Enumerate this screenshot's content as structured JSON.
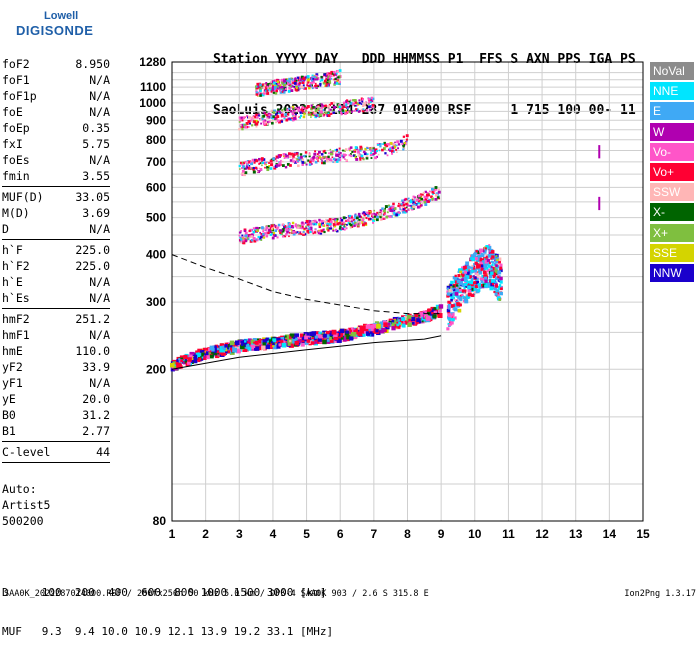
{
  "logo": {
    "line1": "Lowell",
    "line2": "DIGISONDE"
  },
  "header": {
    "line1": "Station YYYY DAY   DDD HHMMSS P1  FFS S AXN PPS IGA PS",
    "line2": "SaoLuis 2022 Oct14 287 014000 RSF     1 715 100 00- 11"
  },
  "params": [
    {
      "name": "foF2",
      "value": "8.950"
    },
    {
      "name": "foF1",
      "value": "N/A"
    },
    {
      "name": "foF1p",
      "value": "N/A"
    },
    {
      "name": "foE",
      "value": "N/A"
    },
    {
      "name": "foEp",
      "value": "0.35"
    },
    {
      "name": "fxI",
      "value": "5.75"
    },
    {
      "name": "foEs",
      "value": "N/A"
    },
    {
      "name": "fmin",
      "value": "3.55"
    },
    {
      "sep": true
    },
    {
      "name": "MUF(D)",
      "value": "33.05"
    },
    {
      "name": "M(D)",
      "value": "3.69"
    },
    {
      "name": "D",
      "value": "N/A"
    },
    {
      "sep": true
    },
    {
      "name": "h`F",
      "value": "225.0"
    },
    {
      "name": "h`F2",
      "value": "225.0"
    },
    {
      "name": "h`E",
      "value": "N/A"
    },
    {
      "name": "h`Es",
      "value": "N/A"
    },
    {
      "sep": true
    },
    {
      "name": "hmF2",
      "value": "251.2"
    },
    {
      "name": "hmF1",
      "value": "N/A"
    },
    {
      "name": "hmE",
      "value": "110.0"
    },
    {
      "name": "yF2",
      "value": "33.9"
    },
    {
      "name": "yF1",
      "value": "N/A"
    },
    {
      "name": "yE",
      "value": "20.0"
    },
    {
      "name": "B0",
      "value": "31.2"
    },
    {
      "name": "B1",
      "value": "2.77"
    },
    {
      "sep": true
    },
    {
      "name": "C-level",
      "value": "44"
    },
    {
      "sep": true
    }
  ],
  "auto": {
    "line1": "Auto:",
    "line2": "Artist5",
    "line3": "500200"
  },
  "mufTable": {
    "row1": "D     100  200  400  600  800 1000 1500 3000 [km]",
    "row2": "MUF   9.3  9.4 10.0 10.9 12.1 13.9 19.2 33.1 [MHz]"
  },
  "footer": {
    "left": "SAA0K_2022287014000.RSF / 280fx256h 50 kHz 5.0 km / DPS-4 SAA0K 903 / 2.6 S 315.8 E",
    "right": "Ion2Png 1.3.17"
  },
  "legend": [
    {
      "label": "NoVal",
      "color": "#8c8c8c"
    },
    {
      "label": "NNE",
      "color": "#00e5ff"
    },
    {
      "label": "E",
      "color": "#3fa9f5"
    },
    {
      "label": "W",
      "color": "#b000b0"
    },
    {
      "label": "Vo-",
      "color": "#ff55c8"
    },
    {
      "label": "Vo+",
      "color": "#ff0033"
    },
    {
      "label": "SSW",
      "color": "#ffb6b6"
    },
    {
      "label": "X-",
      "color": "#006400"
    },
    {
      "label": "X+",
      "color": "#7fbf3f"
    },
    {
      "label": "SSE",
      "color": "#d4d400"
    },
    {
      "label": "NNW",
      "color": "#1a00cc"
    }
  ],
  "chart_data": {
    "type": "scatter",
    "title": "",
    "xlabel": "",
    "ylabel": "",
    "xlim": [
      1,
      15
    ],
    "ylim": [
      80,
      1280
    ],
    "yscale": "log",
    "xticks": [
      1,
      2,
      3,
      4,
      5,
      6,
      7,
      8,
      9,
      10,
      11,
      12,
      13,
      14,
      15
    ],
    "yticks": [
      80,
      200,
      300,
      400,
      500,
      600,
      700,
      800,
      900,
      1000,
      1100,
      1280
    ],
    "grid": true,
    "traces": [
      {
        "name": "F2 first hop",
        "points": [
          [
            1.0,
            205
          ],
          [
            2.0,
            220
          ],
          [
            3.0,
            230
          ],
          [
            4.0,
            235
          ],
          [
            5.0,
            240
          ],
          [
            6.0,
            245
          ],
          [
            7.0,
            255
          ],
          [
            7.5,
            262
          ],
          [
            8.0,
            268
          ],
          [
            8.5,
            275
          ],
          [
            9.0,
            285
          ]
        ]
      },
      {
        "name": "F2 second hop",
        "points": [
          [
            3.0,
            445
          ],
          [
            4.0,
            460
          ],
          [
            5.0,
            470
          ],
          [
            6.0,
            480
          ],
          [
            7.0,
            505
          ],
          [
            7.5,
            520
          ],
          [
            8.0,
            540
          ],
          [
            8.5,
            560
          ],
          [
            9.0,
            585
          ]
        ]
      },
      {
        "name": "F2 third hop",
        "points": [
          [
            3.0,
            670
          ],
          [
            4.0,
            700
          ],
          [
            5.0,
            715
          ],
          [
            6.0,
            730
          ],
          [
            7.0,
            745
          ],
          [
            7.5,
            760
          ],
          [
            8.0,
            790
          ]
        ]
      },
      {
        "name": "F2 fourth hop",
        "points": [
          [
            3.0,
            880
          ],
          [
            4.0,
            920
          ],
          [
            5.0,
            950
          ],
          [
            6.0,
            970
          ],
          [
            7.0,
            1000
          ]
        ]
      },
      {
        "name": "F2 fifth hop",
        "points": [
          [
            3.5,
            1080
          ],
          [
            4.0,
            1100
          ],
          [
            5.0,
            1130
          ],
          [
            6.0,
            1170
          ]
        ]
      },
      {
        "name": "X spread",
        "points": [
          [
            9.2,
            290
          ],
          [
            9.6,
            330
          ],
          [
            10.0,
            360
          ],
          [
            10.4,
            380
          ],
          [
            10.8,
            340
          ]
        ]
      }
    ],
    "profile_solid": [
      [
        1.0,
        200
      ],
      [
        3.0,
        215
      ],
      [
        5.0,
        225
      ],
      [
        7.0,
        235
      ],
      [
        8.5,
        240
      ],
      [
        9.0,
        245
      ]
    ],
    "profile_dashed": [
      [
        1.0,
        400
      ],
      [
        2.0,
        370
      ],
      [
        3.0,
        345
      ],
      [
        4.0,
        320
      ],
      [
        5.0,
        305
      ],
      [
        6.0,
        295
      ],
      [
        7.0,
        285
      ],
      [
        8.0,
        280
      ],
      [
        9.0,
        280
      ]
    ],
    "markers": [
      {
        "x": 13.7,
        "y": 745
      },
      {
        "x": 13.7,
        "y": 545
      }
    ]
  }
}
